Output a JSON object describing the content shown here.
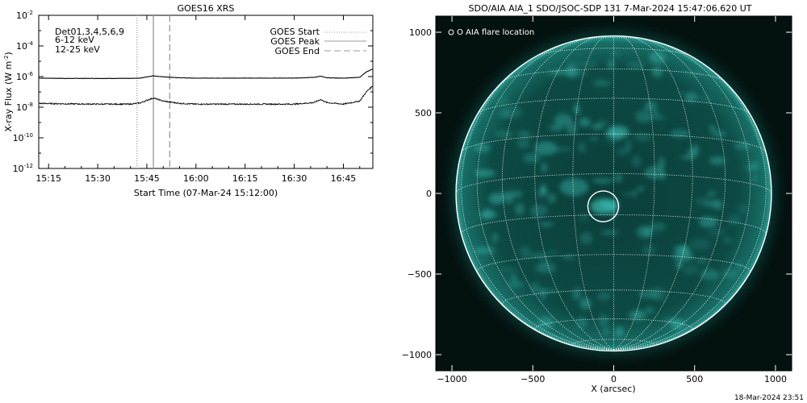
{
  "chart_data": [
    {
      "type": "line",
      "title": "GOES16 XRS",
      "xlabel": "Start Time (07-Mar-24 15:12:00)",
      "ylabel": "X-ray Flux (W m",
      "ylabel_sup": "-2",
      "ylabel_end": ")",
      "yscale": "log",
      "ylim_exp": [
        -12,
        -2
      ],
      "y_ticks": [
        {
          "base": "10",
          "exp": "-2",
          "value_exp": -2
        },
        {
          "base": "10",
          "exp": "-4",
          "value_exp": -4
        },
        {
          "base": "10",
          "exp": "-6",
          "value_exp": -6
        },
        {
          "base": "10",
          "exp": "-8",
          "value_exp": -8
        },
        {
          "base": "10",
          "exp": "-10",
          "value_exp": -10
        },
        {
          "base": "10",
          "exp": "-12",
          "value_exp": -12
        }
      ],
      "xlim": [
        "15:12",
        "16:54"
      ],
      "x_ticks": [
        "15:15",
        "15:30",
        "15:45",
        "16:00",
        "16:15",
        "16:30",
        "16:45"
      ],
      "legend_left": [
        {
          "label": "Det01,3,4,5,6,9",
          "color": "#000000"
        },
        {
          "label": "6-12 keV",
          "color": "#d400d4"
        },
        {
          "label": "12-25 keV",
          "color": "#00cc00"
        }
      ],
      "legend_right": [
        {
          "label": "GOES Start",
          "style": "dotted",
          "color": "#999999"
        },
        {
          "label": "GOES Peak",
          "style": "solid",
          "color": "#999999"
        },
        {
          "label": "GOES End",
          "style": "dashed",
          "color": "#999999"
        }
      ],
      "markers": {
        "start": "15:42",
        "peak": "15:47",
        "end": "15:52"
      },
      "series": [
        {
          "name": "",
          "color": "#000000",
          "x": [
            "15:12",
            "15:20",
            "15:30",
            "15:40",
            "15:43",
            "15:45",
            "15:47",
            "15:50",
            "15:55",
            "16:00",
            "16:15",
            "16:30",
            "16:36",
            "16:38",
            "16:40",
            "16:45",
            "16:50",
            "16:52",
            "16:54"
          ],
          "y_exp": [
            -6.1,
            -6.12,
            -6.12,
            -6.12,
            -6.1,
            -6.02,
            -5.95,
            -6.02,
            -6.08,
            -6.1,
            -6.1,
            -6.1,
            -6.05,
            -5.98,
            -6.08,
            -6.1,
            -6.05,
            -5.7,
            -5.5
          ]
        },
        {
          "name": "",
          "color": "#000000",
          "x": [
            "15:12",
            "15:20",
            "15:30",
            "15:40",
            "15:43",
            "15:45",
            "15:47",
            "15:50",
            "15:55",
            "16:00",
            "16:15",
            "16:30",
            "16:36",
            "16:38",
            "16:40",
            "16:45",
            "16:50",
            "16:52",
            "16:54"
          ],
          "y_exp": [
            -7.75,
            -7.78,
            -7.8,
            -7.8,
            -7.72,
            -7.55,
            -7.4,
            -7.6,
            -7.75,
            -7.8,
            -7.8,
            -7.8,
            -7.7,
            -7.5,
            -7.7,
            -7.8,
            -7.6,
            -7.0,
            -6.6
          ]
        }
      ]
    },
    {
      "type": "heatmap",
      "title": "SDO/AIA AIA_1 SDO/JSOC-SDP 131  7-Mar-2024 15:47:06.620 UT",
      "xlabel": "X (arcsec)",
      "x_ticks": [
        "−1000",
        "−500",
        "0",
        "500",
        "1000"
      ],
      "y_ticks": [
        "1000",
        "500",
        "0",
        "−500",
        "−1000"
      ],
      "x_tick_values": [
        -1000,
        -500,
        0,
        500,
        1000
      ],
      "y_tick_values": [
        1000,
        500,
        0,
        -500,
        -1000
      ],
      "xlim": [
        -1100,
        1100
      ],
      "ylim": [
        -1100,
        1100
      ],
      "solar_radius_arcsec": 975,
      "flare_location_arcsec": [
        -65,
        -80
      ],
      "flare_radius_arcsec": 95,
      "legend": "O AIA flare location",
      "colors": {
        "background": "#03110f",
        "disk": "#0a4a45",
        "bright": "#3fc9bd",
        "grid": "#ffffff"
      }
    }
  ],
  "footer": {
    "timestamp": "18-Mar-2024 23:51"
  }
}
